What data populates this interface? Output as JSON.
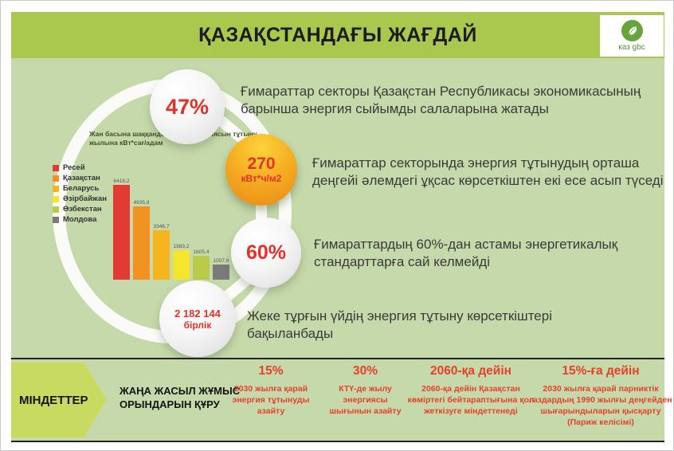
{
  "header": {
    "title": "ҚАЗАҚСТАНДАҒЫ ЖАҒДАЙ",
    "logo": {
      "brand": "каз gbc",
      "icon": "leaf-icon"
    }
  },
  "facts": [
    {
      "badge": "47%",
      "text": "Ғимараттар секторы Қазақстан Республикасы экономикасының барынша энергия сыйымды салаларына жатады"
    },
    {
      "badge": "270",
      "badge_unit": "кВт*ч/м2",
      "text": "Ғимараттар секторында энергия тұтынудың орташа деңгейі әлемдегі ұқсас көрсеткіштен екі есе асып түседі"
    },
    {
      "badge": "60%",
      "text": "Ғимараттардың 60%-дан астамы энергетикалық стандарттарға сай келмейді"
    },
    {
      "badge": "2 182 144",
      "badge_unit": "бірлік",
      "text": "Жеке тұрғын үйдің энергия тұтыну көрсеткіштері бақыланбады"
    }
  ],
  "chart_data": {
    "type": "bar",
    "title": "Жан басына шаққанда электр энергиясын тұтыну, жылына кВт*сағ/адам",
    "categories": [
      "Ресей",
      "Қазақстан",
      "Беларусь",
      "Әзірбайжан",
      "Өзбекстан",
      "Молдова"
    ],
    "values": [
      6418.2,
      4935.8,
      3346.7,
      1983.2,
      1605.4,
      1007.6
    ],
    "value_labels": [
      "6418,2",
      "4935,8",
      "3346,7",
      "1983,2",
      "1605,4",
      "1007,6"
    ],
    "colors": [
      "#e23b33",
      "#f29222",
      "#f6b51f",
      "#f4e62e",
      "#bcca4a",
      "#7a7a7a"
    ],
    "legend_position": "left",
    "ylim": [
      0,
      6500
    ],
    "grid": false,
    "xlabel": "",
    "ylabel": ""
  },
  "objectives": {
    "label": "МІНДЕТТЕР",
    "first_item": "ЖАҢА ЖАСЫЛ ЖҰМЫС ОРЫНДАРЫН ҚҰРУ",
    "columns": [
      {
        "heading": "15%",
        "body": "2030 жылға қарай энергия тұтынуды азайту"
      },
      {
        "heading": "30%",
        "body": "КТҮ-де жылу энергиясы шығынын азайту"
      },
      {
        "heading": "2060-қа дейін",
        "body": "2060-қа дейін Қазақстан көміртегі бейтараптығына қол жеткізуге міндеттенеді"
      },
      {
        "heading": "15%-ға дейін",
        "body": "2030 жылға қарай парниктік газдардың 1990 жылғы деңгейден шығарындыларын қысқарту (Париж келісімі)"
      }
    ]
  },
  "colors": {
    "banner_green": "#a9c84d",
    "panel_green": "#c6d9ab",
    "arrow_green": "#c9da60",
    "accent_red": "#e43127",
    "objectives_red": "#e8402c",
    "logo_green": "#67a43c"
  }
}
